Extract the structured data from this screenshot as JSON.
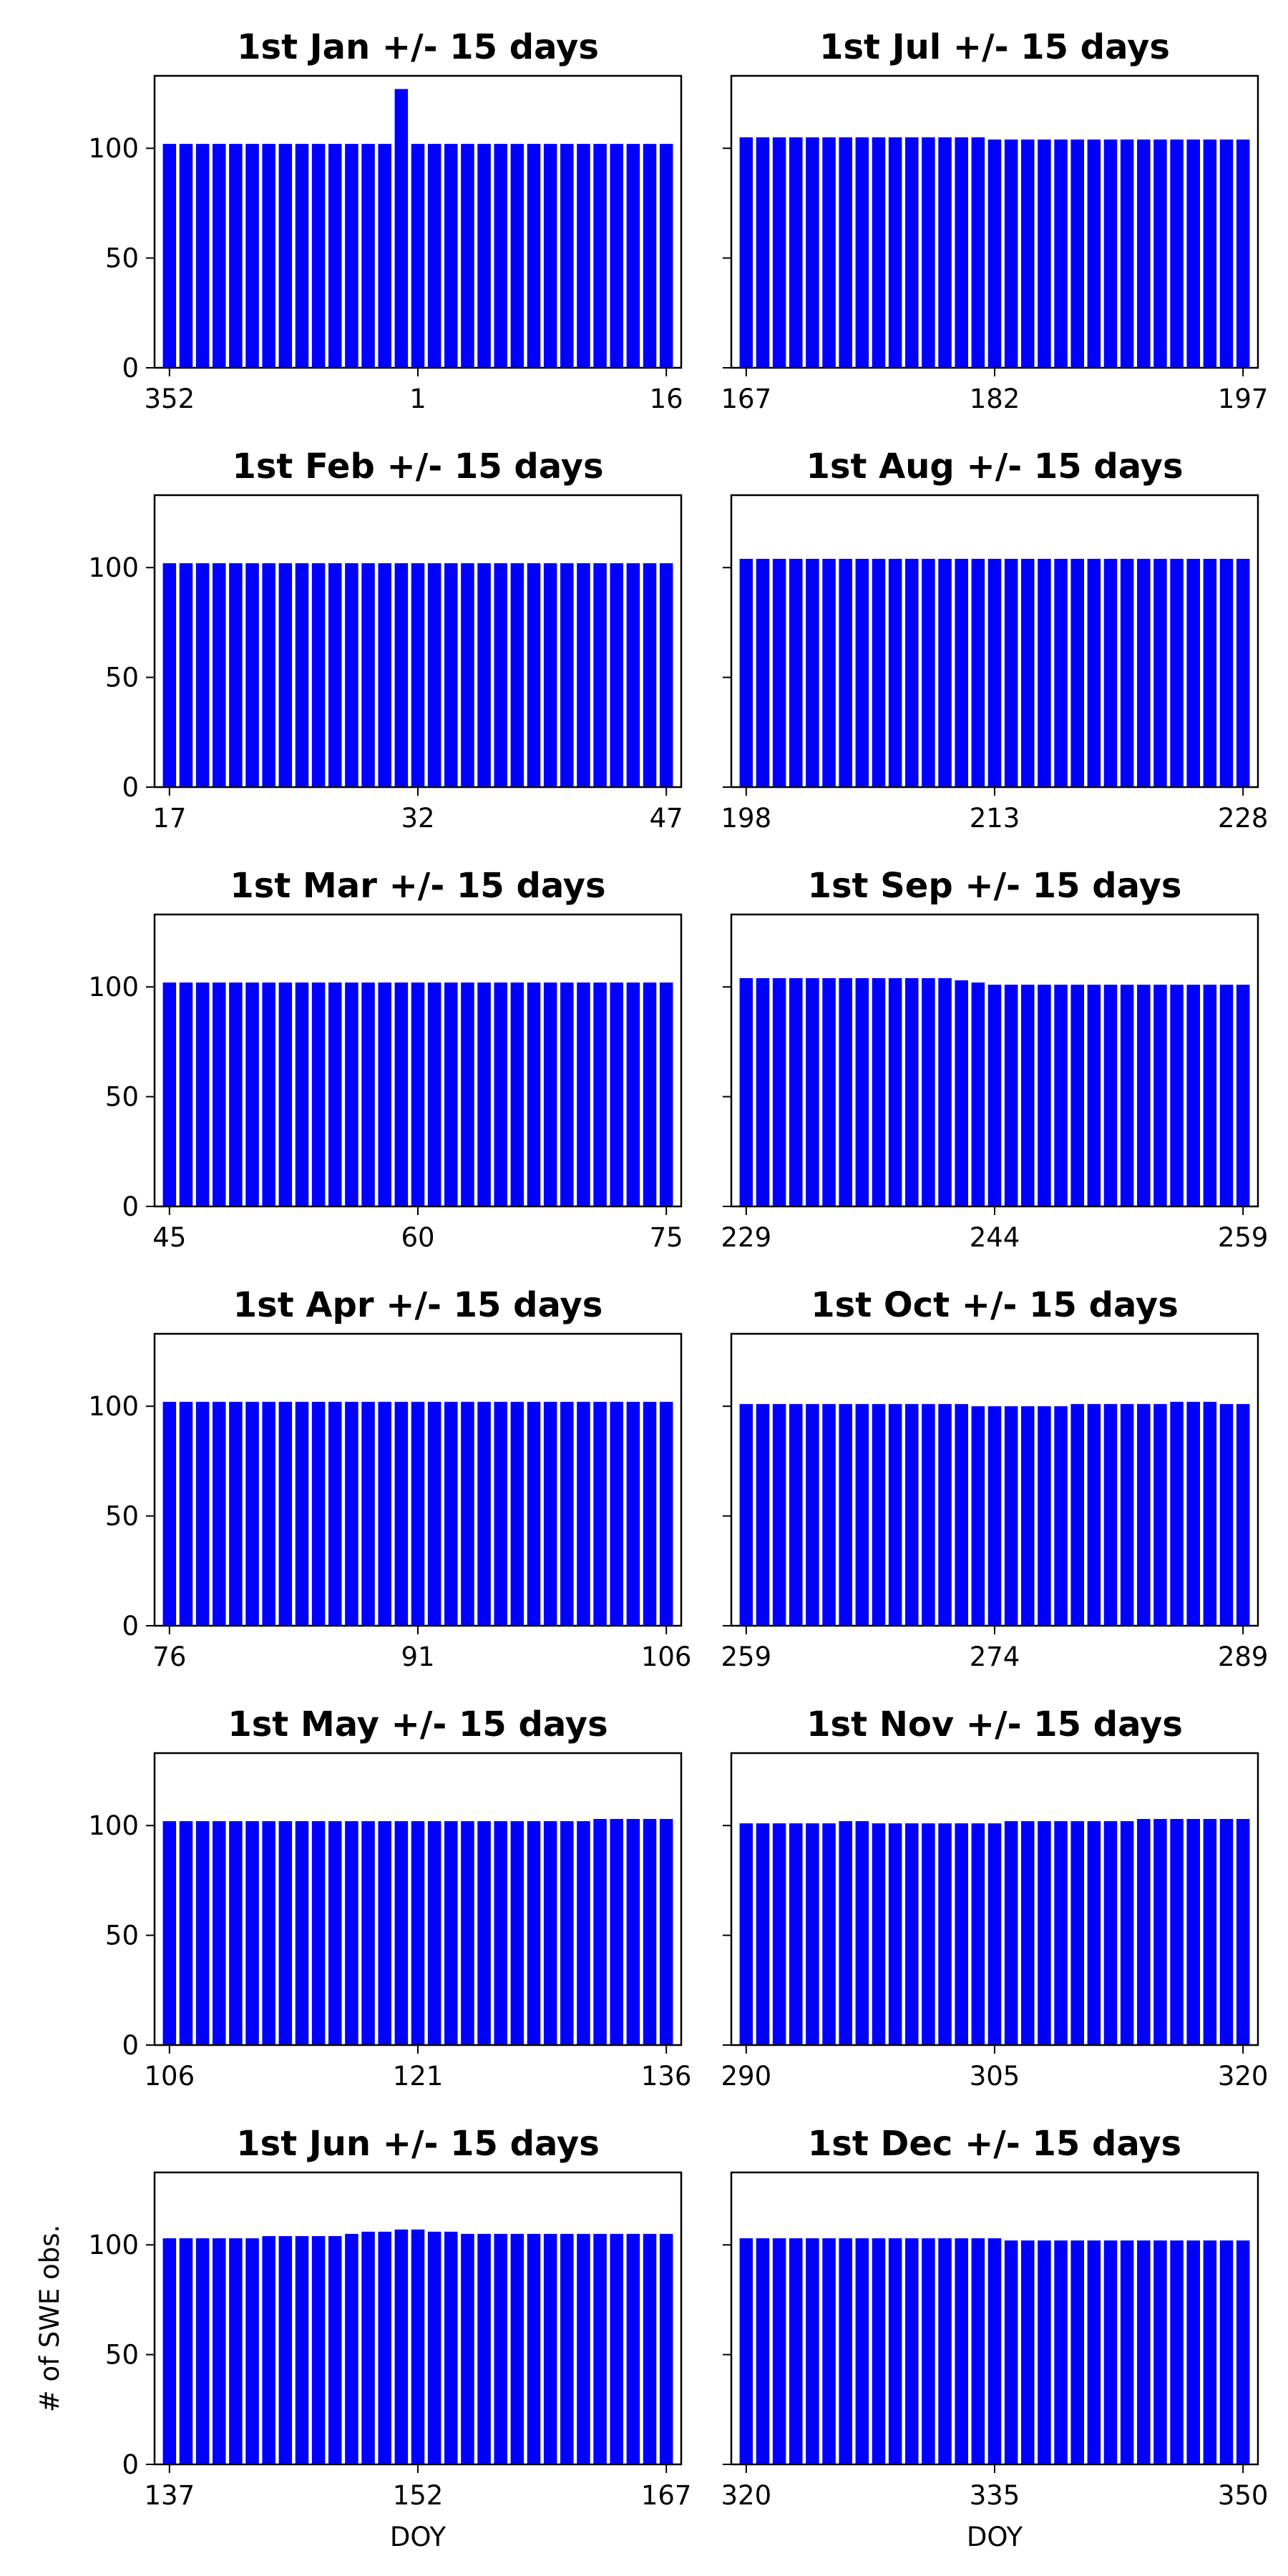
{
  "figure": {
    "ylabel": "# of SWE obs.",
    "xlabel": "DOY",
    "bar_color": "#0000ff",
    "ylim": [
      0,
      133
    ],
    "yticks": [
      0,
      50,
      100
    ]
  },
  "chart_data": [
    {
      "type": "bar",
      "title": "1st Jan +/- 15 days",
      "x_start": 352,
      "xticks": [
        "352",
        "1",
        "16"
      ],
      "ylim": [
        0,
        133
      ],
      "values": [
        102,
        102,
        102,
        102,
        102,
        102,
        102,
        102,
        102,
        102,
        102,
        102,
        102,
        102,
        127,
        102,
        102,
        102,
        102,
        102,
        102,
        102,
        102,
        102,
        102,
        102,
        102,
        102,
        102,
        102,
        102
      ]
    },
    {
      "type": "bar",
      "title": "1st Jul +/- 15 days",
      "x_start": 167,
      "xticks": [
        "167",
        "182",
        "197"
      ],
      "ylim": [
        0,
        133
      ],
      "values": [
        105,
        105,
        105,
        105,
        105,
        105,
        105,
        105,
        105,
        105,
        105,
        105,
        105,
        105,
        105,
        104,
        104,
        104,
        104,
        104,
        104,
        104,
        104,
        104,
        104,
        104,
        104,
        104,
        104,
        104,
        104
      ]
    },
    {
      "type": "bar",
      "title": "1st Feb +/- 15 days",
      "x_start": 17,
      "xticks": [
        "17",
        "32",
        "47"
      ],
      "ylim": [
        0,
        133
      ],
      "values": [
        102,
        102,
        102,
        102,
        102,
        102,
        102,
        102,
        102,
        102,
        102,
        102,
        102,
        102,
        102,
        102,
        102,
        102,
        102,
        102,
        102,
        102,
        102,
        102,
        102,
        102,
        102,
        102,
        102,
        102,
        102
      ]
    },
    {
      "type": "bar",
      "title": "1st Aug +/- 15 days",
      "x_start": 198,
      "xticks": [
        "198",
        "213",
        "228"
      ],
      "ylim": [
        0,
        133
      ],
      "values": [
        104,
        104,
        104,
        104,
        104,
        104,
        104,
        104,
        104,
        104,
        104,
        104,
        104,
        104,
        104,
        104,
        104,
        104,
        104,
        104,
        104,
        104,
        104,
        104,
        104,
        104,
        104,
        104,
        104,
        104,
        104
      ]
    },
    {
      "type": "bar",
      "title": "1st Mar +/- 15 days",
      "x_start": 45,
      "xticks": [
        "45",
        "60",
        "75"
      ],
      "ylim": [
        0,
        133
      ],
      "values": [
        102,
        102,
        102,
        102,
        102,
        102,
        102,
        102,
        102,
        102,
        102,
        102,
        102,
        102,
        102,
        102,
        102,
        102,
        102,
        102,
        102,
        102,
        102,
        102,
        102,
        102,
        102,
        102,
        102,
        102,
        102
      ]
    },
    {
      "type": "bar",
      "title": "1st Sep +/- 15 days",
      "x_start": 229,
      "xticks": [
        "229",
        "244",
        "259"
      ],
      "ylim": [
        0,
        133
      ],
      "values": [
        104,
        104,
        104,
        104,
        104,
        104,
        104,
        104,
        104,
        104,
        104,
        104,
        104,
        103,
        102,
        101,
        101,
        101,
        101,
        101,
        101,
        101,
        101,
        101,
        101,
        101,
        101,
        101,
        101,
        101,
        101
      ]
    },
    {
      "type": "bar",
      "title": "1st Apr +/- 15 days",
      "x_start": 76,
      "xticks": [
        "76",
        "91",
        "106"
      ],
      "ylim": [
        0,
        133
      ],
      "values": [
        102,
        102,
        102,
        102,
        102,
        102,
        102,
        102,
        102,
        102,
        102,
        102,
        102,
        102,
        102,
        102,
        102,
        102,
        102,
        102,
        102,
        102,
        102,
        102,
        102,
        102,
        102,
        102,
        102,
        102,
        102
      ]
    },
    {
      "type": "bar",
      "title": "1st Oct +/- 15 days",
      "x_start": 259,
      "xticks": [
        "259",
        "274",
        "289"
      ],
      "ylim": [
        0,
        133
      ],
      "values": [
        101,
        101,
        101,
        101,
        101,
        101,
        101,
        101,
        101,
        101,
        101,
        101,
        101,
        101,
        100,
        100,
        100,
        100,
        100,
        100,
        101,
        101,
        101,
        101,
        101,
        101,
        102,
        102,
        102,
        101,
        101
      ]
    },
    {
      "type": "bar",
      "title": "1st May +/- 15 days",
      "x_start": 106,
      "xticks": [
        "106",
        "121",
        "136"
      ],
      "ylim": [
        0,
        133
      ],
      "values": [
        102,
        102,
        102,
        102,
        102,
        102,
        102,
        102,
        102,
        102,
        102,
        102,
        102,
        102,
        102,
        102,
        102,
        102,
        102,
        102,
        102,
        102,
        102,
        102,
        102,
        102,
        103,
        103,
        103,
        103,
        103
      ]
    },
    {
      "type": "bar",
      "title": "1st Nov +/- 15 days",
      "x_start": 290,
      "xticks": [
        "290",
        "305",
        "320"
      ],
      "ylim": [
        0,
        133
      ],
      "values": [
        101,
        101,
        101,
        101,
        101,
        101,
        102,
        102,
        101,
        101,
        101,
        101,
        101,
        101,
        101,
        101,
        102,
        102,
        102,
        102,
        102,
        102,
        102,
        102,
        103,
        103,
        103,
        103,
        103,
        103,
        103
      ]
    },
    {
      "type": "bar",
      "title": "1st Jun +/- 15 days",
      "x_start": 137,
      "xticks": [
        "137",
        "152",
        "167"
      ],
      "ylim": [
        0,
        133
      ],
      "values": [
        103,
        103,
        103,
        103,
        103,
        103,
        104,
        104,
        104,
        104,
        104,
        105,
        106,
        106,
        107,
        107,
        106,
        106,
        105,
        105,
        105,
        105,
        105,
        105,
        105,
        105,
        105,
        105,
        105,
        105,
        105
      ]
    },
    {
      "type": "bar",
      "title": "1st Dec +/- 15 days",
      "x_start": 320,
      "xticks": [
        "320",
        "335",
        "350"
      ],
      "ylim": [
        0,
        133
      ],
      "values": [
        103,
        103,
        103,
        103,
        103,
        103,
        103,
        103,
        103,
        103,
        103,
        103,
        103,
        103,
        103,
        103,
        102,
        102,
        102,
        102,
        102,
        102,
        102,
        102,
        102,
        102,
        102,
        102,
        102,
        102,
        102
      ]
    }
  ]
}
